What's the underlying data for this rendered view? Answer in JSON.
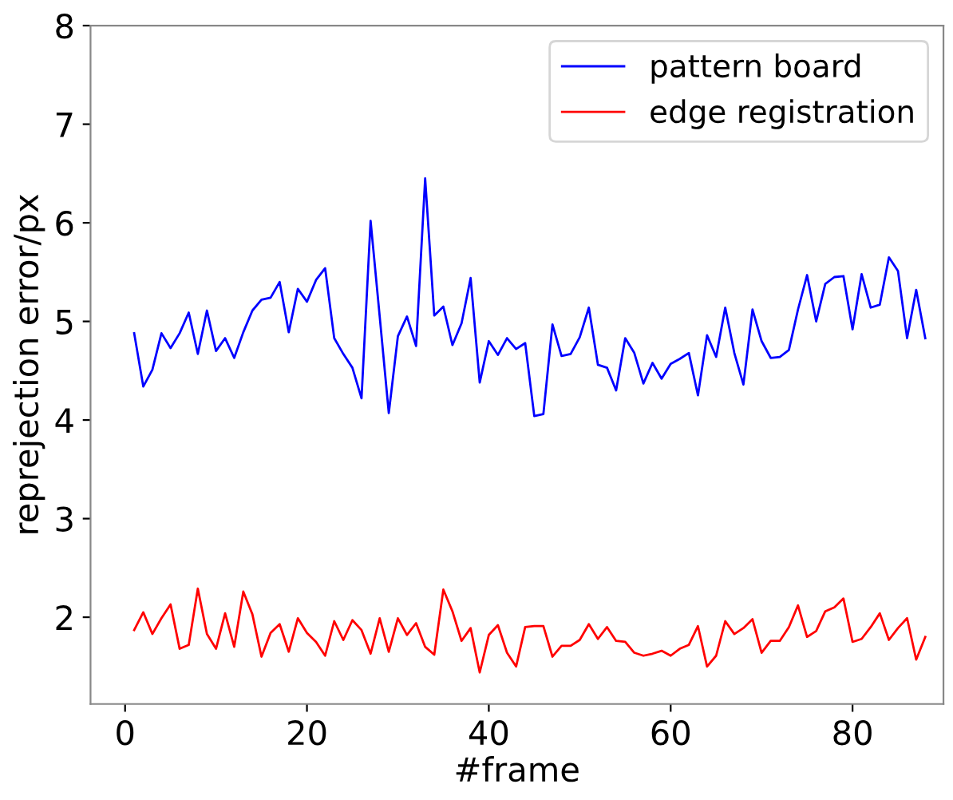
{
  "chart_data": {
    "type": "line",
    "xlabel": "#frame",
    "ylabel": "reprejection error/px",
    "x": [
      1,
      2,
      3,
      4,
      5,
      6,
      7,
      8,
      9,
      10,
      11,
      12,
      13,
      14,
      15,
      16,
      17,
      18,
      19,
      20,
      21,
      22,
      23,
      24,
      25,
      26,
      27,
      28,
      29,
      30,
      31,
      32,
      33,
      34,
      35,
      36,
      37,
      38,
      39,
      40,
      41,
      42,
      43,
      44,
      45,
      46,
      47,
      48,
      49,
      50,
      51,
      52,
      53,
      54,
      55,
      56,
      57,
      58,
      59,
      60,
      61,
      62,
      63,
      64,
      65,
      66,
      67,
      68,
      69,
      70,
      71,
      72,
      73,
      74,
      75,
      76,
      77,
      78,
      79,
      80,
      81,
      82,
      83,
      84,
      85,
      86,
      87,
      88
    ],
    "series": [
      {
        "name": "pattern board",
        "color": "#0000ff",
        "values": [
          4.88,
          4.34,
          4.51,
          4.88,
          4.73,
          4.88,
          5.09,
          4.67,
          5.11,
          4.7,
          4.83,
          4.63,
          4.89,
          5.11,
          5.22,
          5.24,
          5.4,
          4.89,
          5.33,
          5.2,
          5.42,
          5.54,
          4.83,
          4.67,
          4.53,
          4.22,
          6.02,
          5.05,
          4.07,
          4.85,
          5.05,
          4.75,
          6.45,
          5.06,
          5.15,
          4.76,
          4.98,
          5.44,
          4.38,
          4.8,
          4.66,
          4.83,
          4.72,
          4.78,
          4.04,
          4.06,
          4.97,
          4.65,
          4.67,
          4.84,
          5.14,
          4.56,
          4.53,
          4.3,
          4.83,
          4.68,
          4.37,
          4.58,
          4.42,
          4.57,
          4.62,
          4.68,
          4.25,
          4.86,
          4.64,
          5.14,
          4.68,
          4.36,
          5.12,
          4.8,
          4.63,
          4.64,
          4.71,
          5.12,
          5.47,
          5.0,
          5.38,
          5.45,
          5.46,
          4.92,
          5.48,
          5.14,
          5.17,
          5.65,
          5.51,
          4.83,
          5.32,
          4.83
        ]
      },
      {
        "name": "edge registration",
        "color": "#ff0000",
        "values": [
          1.87,
          2.05,
          1.83,
          1.99,
          2.13,
          1.68,
          1.72,
          2.29,
          1.83,
          1.68,
          2.04,
          1.7,
          2.26,
          2.03,
          1.6,
          1.84,
          1.93,
          1.65,
          1.99,
          1.84,
          1.75,
          1.61,
          1.96,
          1.77,
          1.97,
          1.87,
          1.63,
          1.99,
          1.65,
          1.99,
          1.82,
          1.94,
          1.7,
          1.62,
          2.28,
          2.06,
          1.76,
          1.89,
          1.44,
          1.82,
          1.92,
          1.64,
          1.5,
          1.9,
          1.91,
          1.91,
          1.6,
          1.71,
          1.71,
          1.77,
          1.93,
          1.78,
          1.9,
          1.76,
          1.75,
          1.64,
          1.61,
          1.63,
          1.66,
          1.61,
          1.68,
          1.72,
          1.91,
          1.5,
          1.61,
          1.96,
          1.83,
          1.89,
          1.98,
          1.64,
          1.76,
          1.76,
          1.9,
          2.12,
          1.8,
          1.86,
          2.06,
          2.1,
          2.19,
          1.75,
          1.78,
          1.9,
          2.04,
          1.77,
          1.89,
          1.99,
          1.57,
          1.8
        ]
      }
    ],
    "xlim": [
      -3.8,
      90
    ],
    "ylim": [
      1.12,
      8
    ],
    "xticks": [
      0,
      20,
      40,
      60,
      80
    ],
    "yticks": [
      2,
      3,
      4,
      5,
      6,
      7,
      8
    ],
    "grid": false,
    "legend": "top right",
    "marker": "none",
    "line_style": "solid"
  }
}
